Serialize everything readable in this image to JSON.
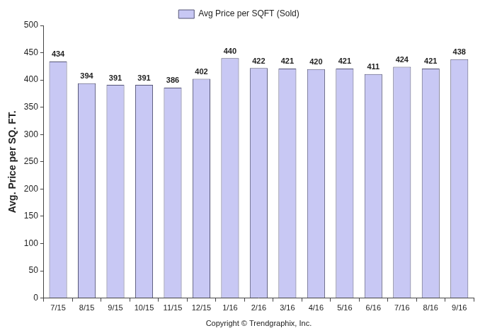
{
  "chart_data": {
    "type": "bar",
    "y_label": "Avg. Price per SQ. FT.",
    "x_label": "Copyright © Trendgraphix, Inc.",
    "categories": [
      "7/15",
      "8/15",
      "9/15",
      "10/15",
      "11/15",
      "12/15",
      "1/16",
      "2/16",
      "3/16",
      "4/16",
      "5/16",
      "6/16",
      "7/16",
      "8/16",
      "9/16"
    ],
    "series": [
      {
        "name": "Avg Price per SQFT (Sold)",
        "color": "#c8c8f4",
        "values": [
          434,
          394,
          391,
          391,
          386,
          402,
          440,
          422,
          421,
          420,
          421,
          411,
          424,
          421,
          438
        ]
      }
    ],
    "ylim": [
      0,
      500
    ],
    "yticks": [
      0,
      50,
      100,
      150,
      200,
      250,
      300,
      350,
      400,
      450,
      500
    ],
    "grid": false,
    "legend": "top",
    "data_labels": true
  }
}
